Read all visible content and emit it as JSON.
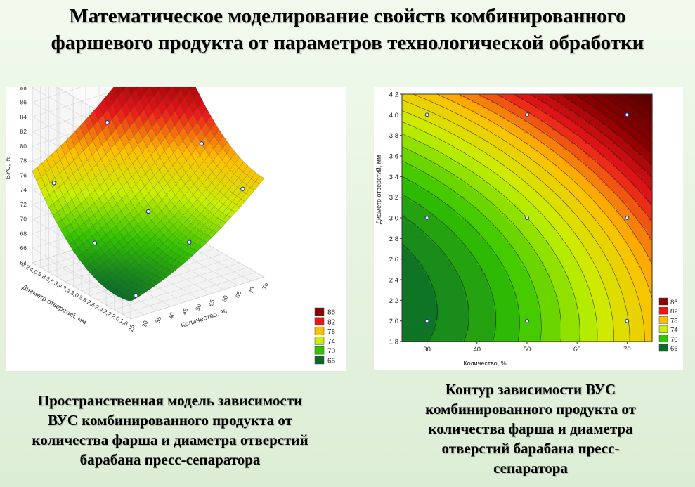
{
  "title": {
    "lines": [
      "Математическое моделирование свойств комбинированного",
      "фаршевого продукта от параметров технологической обработки"
    ]
  },
  "left_caption": {
    "lines": [
      "Пространственная модель зависимости",
      "ВУС комбинированного продукта от",
      "количества фарша и диаметра отверстий",
      "барабана пресс-сепаратора"
    ]
  },
  "right_caption": {
    "lines": [
      "Контур зависимости ВУС",
      "комбинированного продукта от",
      "количества фарша и диаметра",
      "отверстий барабана пресс-",
      "сепаратора"
    ]
  },
  "legend": {
    "entries": [
      {
        "label": "86",
        "color": "#8b0000"
      },
      {
        "label": "82",
        "color": "#e8171a"
      },
      {
        "label": "78",
        "color": "#ffc000"
      },
      {
        "label": "74",
        "color": "#c8f000"
      },
      {
        "label": "70",
        "color": "#33c400"
      },
      {
        "label": "66",
        "color": "#0a6a2a"
      }
    ]
  },
  "chart_data": [
    {
      "type": "surface",
      "zlabel": "ВУС, %",
      "xlabel": "Количество, %",
      "ylabel": "Диаметр отверстий, мм",
      "z_ticks": [
        "64",
        "66",
        "68",
        "70",
        "72",
        "74",
        "76",
        "78",
        "80",
        "82",
        "84",
        "86",
        "88",
        "90"
      ],
      "x_ticks": [
        "25",
        "30",
        "35",
        "40",
        "45",
        "50",
        "55",
        "60",
        "65",
        "70",
        "75"
      ],
      "y_ticks": [
        "1,8",
        "2,0",
        "2,2",
        "2,4",
        "2,6",
        "2,8",
        "3,0",
        "3,2",
        "3,4",
        "3,6",
        "3,8",
        "4,0",
        "4,2"
      ],
      "xlim": [
        25,
        75
      ],
      "ylim": [
        1.8,
        4.2
      ],
      "zlim": [
        64,
        90
      ],
      "points": [
        {
          "x": 30,
          "y": 2.0,
          "z": 66
        },
        {
          "x": 30,
          "y": 3.0,
          "z": 70
        },
        {
          "x": 30,
          "y": 4.0,
          "z": 75
        },
        {
          "x": 50,
          "y": 2.0,
          "z": 71
        },
        {
          "x": 50,
          "y": 3.0,
          "z": 72
        },
        {
          "x": 50,
          "y": 4.0,
          "z": 81
        },
        {
          "x": 70,
          "y": 2.0,
          "z": 76
        },
        {
          "x": 70,
          "y": 3.0,
          "z": 79
        },
        {
          "x": 70,
          "y": 4.0,
          "z": 88
        }
      ]
    },
    {
      "type": "contour",
      "xlabel": "Количество, %",
      "ylabel": "Диаметр отверстий, мм",
      "x_ticks": [
        "30",
        "40",
        "50",
        "60",
        "70"
      ],
      "y_ticks": [
        "1,8",
        "2,0",
        "2,2",
        "2,4",
        "2,6",
        "2,8",
        "3,0",
        "3,2",
        "3,4",
        "3,6",
        "3,8",
        "4,0",
        "4,2"
      ],
      "xlim": [
        25,
        75
      ],
      "ylim": [
        1.8,
        4.2
      ],
      "levels": [
        66,
        70,
        74,
        78,
        82,
        86
      ],
      "points": [
        {
          "x": 30,
          "y": 2.0
        },
        {
          "x": 30,
          "y": 3.0
        },
        {
          "x": 30,
          "y": 4.0
        },
        {
          "x": 50,
          "y": 2.0
        },
        {
          "x": 50,
          "y": 3.0
        },
        {
          "x": 50,
          "y": 4.0
        },
        {
          "x": 70,
          "y": 2.0
        },
        {
          "x": 70,
          "y": 3.0
        },
        {
          "x": 70,
          "y": 4.0
        }
      ]
    }
  ]
}
